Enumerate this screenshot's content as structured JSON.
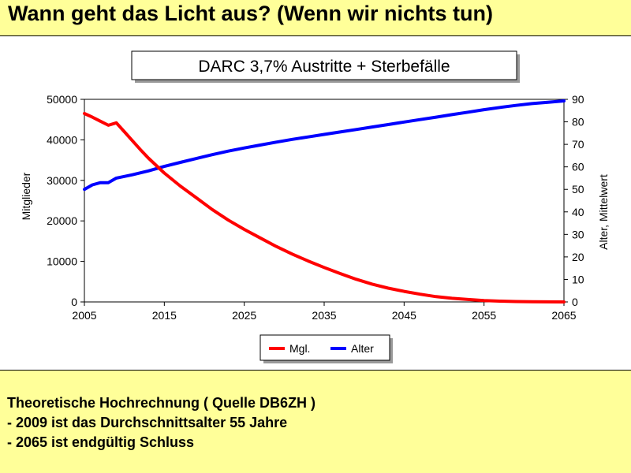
{
  "slide": {
    "title": "Wann geht das Licht aus? (Wenn wir nichts tun)",
    "notes": [
      "Theoretische Hochrechnung ( Quelle DB6ZH )",
      "- 2009 ist das Durchschnittsalter 55 Jahre",
      "- 2065 ist endgültig Schluss"
    ]
  },
  "colors": {
    "background": "#ffff99",
    "mgl": "#ff0000",
    "alter": "#0000ff"
  },
  "chart_data": {
    "type": "line",
    "title": "DARC 3,7% Austritte + Sterbefälle",
    "xlabel": "",
    "ylabel_left": "Mitglieder",
    "ylabel_right": "Alter, Mittelwert",
    "xlim": [
      2005,
      2065
    ],
    "ylim_left": [
      0,
      50000
    ],
    "ylim_right": [
      0,
      90
    ],
    "x_ticks": [
      "2005",
      "2015",
      "2025",
      "2035",
      "2045",
      "2055",
      "2065"
    ],
    "y_ticks_left": [
      "0",
      "10000",
      "20000",
      "30000",
      "40000",
      "50000"
    ],
    "y_ticks_right": [
      "0",
      "10",
      "20",
      "30",
      "40",
      "50",
      "60",
      "70",
      "80",
      "90"
    ],
    "legend_position": "bottom",
    "grid": false,
    "series": [
      {
        "name": "Mgl.",
        "axis": "left",
        "color": "#ff0000",
        "points": [
          [
            2005,
            46500
          ],
          [
            2006,
            45600
          ],
          [
            2007,
            44600
          ],
          [
            2008,
            43600
          ],
          [
            2009,
            44200
          ],
          [
            2010,
            42000
          ],
          [
            2011,
            39800
          ],
          [
            2012,
            37600
          ],
          [
            2013,
            35500
          ],
          [
            2015,
            31800
          ],
          [
            2017,
            28600
          ],
          [
            2019,
            25700
          ],
          [
            2021,
            22800
          ],
          [
            2023,
            20200
          ],
          [
            2025,
            17900
          ],
          [
            2027,
            15800
          ],
          [
            2029,
            13700
          ],
          [
            2031,
            11800
          ],
          [
            2033,
            10100
          ],
          [
            2035,
            8500
          ],
          [
            2037,
            7000
          ],
          [
            2039,
            5600
          ],
          [
            2041,
            4400
          ],
          [
            2043,
            3400
          ],
          [
            2045,
            2600
          ],
          [
            2047,
            1900
          ],
          [
            2049,
            1300
          ],
          [
            2051,
            900
          ],
          [
            2053,
            600
          ],
          [
            2055,
            350
          ],
          [
            2057,
            200
          ],
          [
            2059,
            100
          ],
          [
            2061,
            50
          ],
          [
            2063,
            20
          ],
          [
            2065,
            0
          ]
        ]
      },
      {
        "name": "Alter",
        "axis": "right",
        "color": "#0000ff",
        "points": [
          [
            2005,
            50
          ],
          [
            2006,
            52
          ],
          [
            2007,
            53
          ],
          [
            2008,
            53
          ],
          [
            2009,
            55
          ],
          [
            2011,
            56.5
          ],
          [
            2013,
            58.2
          ],
          [
            2015,
            60.2
          ],
          [
            2017,
            62
          ],
          [
            2019,
            63.7
          ],
          [
            2021,
            65.4
          ],
          [
            2023,
            67
          ],
          [
            2025,
            68.4
          ],
          [
            2027,
            69.7
          ],
          [
            2029,
            71
          ],
          [
            2031,
            72.2
          ],
          [
            2033,
            73.3
          ],
          [
            2035,
            74.4
          ],
          [
            2037,
            75.5
          ],
          [
            2039,
            76.6
          ],
          [
            2041,
            77.7
          ],
          [
            2043,
            78.8
          ],
          [
            2045,
            79.9
          ],
          [
            2047,
            81
          ],
          [
            2049,
            82.1
          ],
          [
            2051,
            83.2
          ],
          [
            2053,
            84.3
          ],
          [
            2055,
            85.4
          ],
          [
            2057,
            86.4
          ],
          [
            2059,
            87.3
          ],
          [
            2061,
            88.1
          ],
          [
            2063,
            88.7
          ],
          [
            2065,
            89.3
          ]
        ]
      }
    ]
  }
}
